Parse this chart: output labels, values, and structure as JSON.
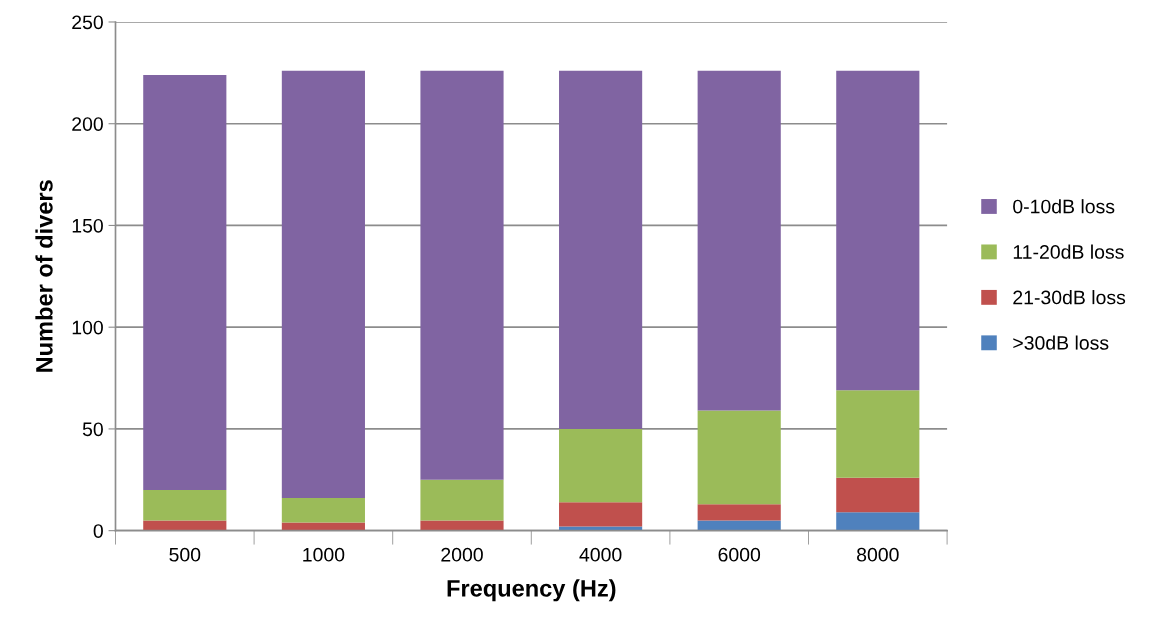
{
  "chart_data": {
    "type": "bar",
    "stacked": true,
    "xlabel": "Frequency (Hz)",
    "ylabel": "Number of divers",
    "categories": [
      "500",
      "1000",
      "2000",
      "4000",
      "6000",
      "8000"
    ],
    "series": [
      {
        "name": ">30dB loss",
        "color": "#4f81bd",
        "values": [
          0,
          0,
          null,
          2,
          5,
          9
        ]
      },
      {
        "name": "21-30dB loss",
        "color": "#c0504d",
        "values": [
          5,
          4,
          5,
          12,
          8,
          17
        ]
      },
      {
        "name": "11-20dB loss",
        "color": "#9bbb59",
        "values": [
          15,
          12,
          20,
          36,
          46,
          43
        ]
      },
      {
        "name": "0-10dB loss",
        "color": "#8064a2",
        "values": [
          204,
          210,
          201,
          176,
          167,
          157
        ]
      }
    ],
    "ylim": [
      0,
      250
    ],
    "yticks": [
      0,
      50,
      100,
      150,
      200,
      250
    ],
    "grid": "y",
    "legend": "right"
  }
}
